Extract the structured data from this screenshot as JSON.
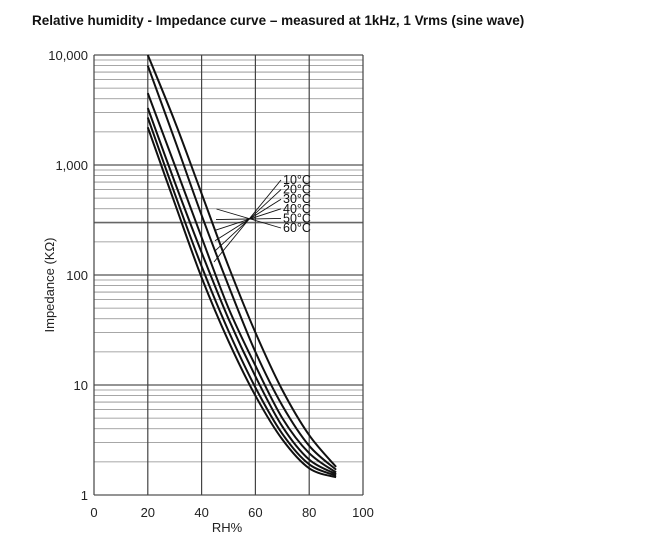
{
  "chart_data": {
    "type": "line",
    "title": "Relative humidity - Impedance curve – measured at 1kHz, 1 Vrms (sine wave)",
    "xlabel": "RH%",
    "ylabel": "Impedance (KΩ)",
    "xlim": [
      0,
      100
    ],
    "ylim": [
      1,
      10000
    ],
    "y_scale": "log",
    "grid": true,
    "x_ticks": [
      0,
      20,
      40,
      60,
      80,
      100
    ],
    "x_tick_labels": [
      "0",
      "20",
      "40",
      "60",
      "80",
      "100"
    ],
    "y_ticks": [
      1,
      10,
      100,
      1000,
      10000
    ],
    "y_tick_labels": [
      "1",
      "10",
      "100",
      "1,000",
      "10,000"
    ],
    "legend_placement": "inside, center-right",
    "series": [
      {
        "name": "10°C",
        "x": [
          20,
          30,
          40,
          50,
          60,
          70,
          80,
          90
        ],
        "y": [
          10000,
          2500,
          550,
          120,
          30,
          9,
          3.5,
          1.8
        ]
      },
      {
        "name": "20°C",
        "x": [
          20,
          30,
          40,
          50,
          60,
          70,
          80,
          90
        ],
        "y": [
          8000,
          1700,
          350,
          80,
          20,
          6.5,
          2.8,
          1.7
        ]
      },
      {
        "name": "30°C",
        "x": [
          20,
          30,
          40,
          50,
          60,
          70,
          80,
          90
        ],
        "y": [
          4500,
          1000,
          220,
          50,
          15,
          5,
          2.4,
          1.6
        ]
      },
      {
        "name": "40°C",
        "x": [
          20,
          30,
          40,
          50,
          60,
          70,
          80,
          90
        ],
        "y": [
          3300,
          700,
          160,
          40,
          12,
          4.2,
          2.1,
          1.55
        ]
      },
      {
        "name": "50°C",
        "x": [
          20,
          30,
          40,
          50,
          60,
          70,
          80,
          90
        ],
        "y": [
          2700,
          550,
          120,
          31,
          9.5,
          3.6,
          1.9,
          1.5
        ]
      },
      {
        "name": "60°C",
        "x": [
          20,
          30,
          40,
          50,
          60,
          70,
          80,
          90
        ],
        "y": [
          2200,
          450,
          95,
          25,
          8,
          3.2,
          1.75,
          1.45
        ]
      }
    ]
  }
}
